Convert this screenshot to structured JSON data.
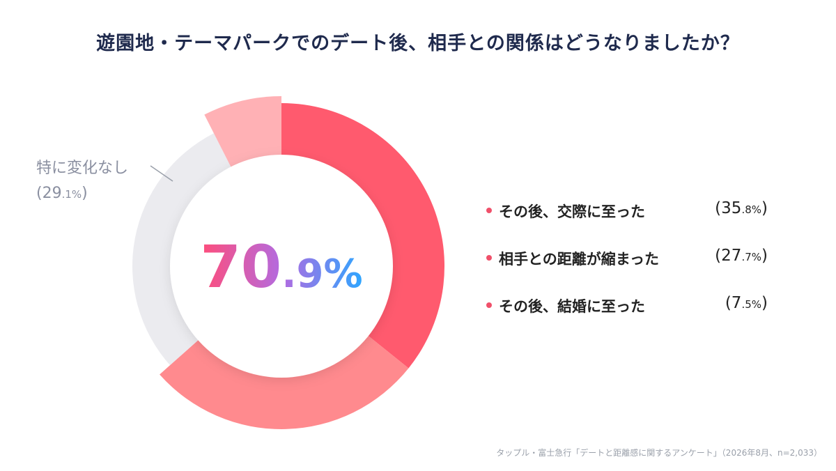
{
  "chart_data": {
    "type": "pie",
    "title": "遊園地・テーマパークでのデート後、相手との関係はどうなりましたか？",
    "center_value": {
      "main": "70",
      "decimal": ".9%"
    },
    "slices": [
      {
        "label": "その後、交際に至った",
        "value": 35.8,
        "value_main": "35",
        "value_decimal": ".8%",
        "color": "#ff5a6e"
      },
      {
        "label": "相手との距離が縮まった",
        "value": 27.7,
        "value_main": "27",
        "value_decimal": ".7%",
        "color": "#ff8a8e"
      },
      {
        "label": "特に変化なし",
        "value": 29.1,
        "value_main": "29",
        "value_decimal": ".1%",
        "color": "#ebebef"
      },
      {
        "label": "その後、結婚に至った",
        "value": 7.5,
        "value_main": "7",
        "value_decimal": ".5%",
        "color": "#ffb1b5"
      }
    ],
    "legend_placement": "right"
  },
  "source": "タップル・富士急行「デートと距離感に関するアンケート」（2026年8月、n=2,033）"
}
